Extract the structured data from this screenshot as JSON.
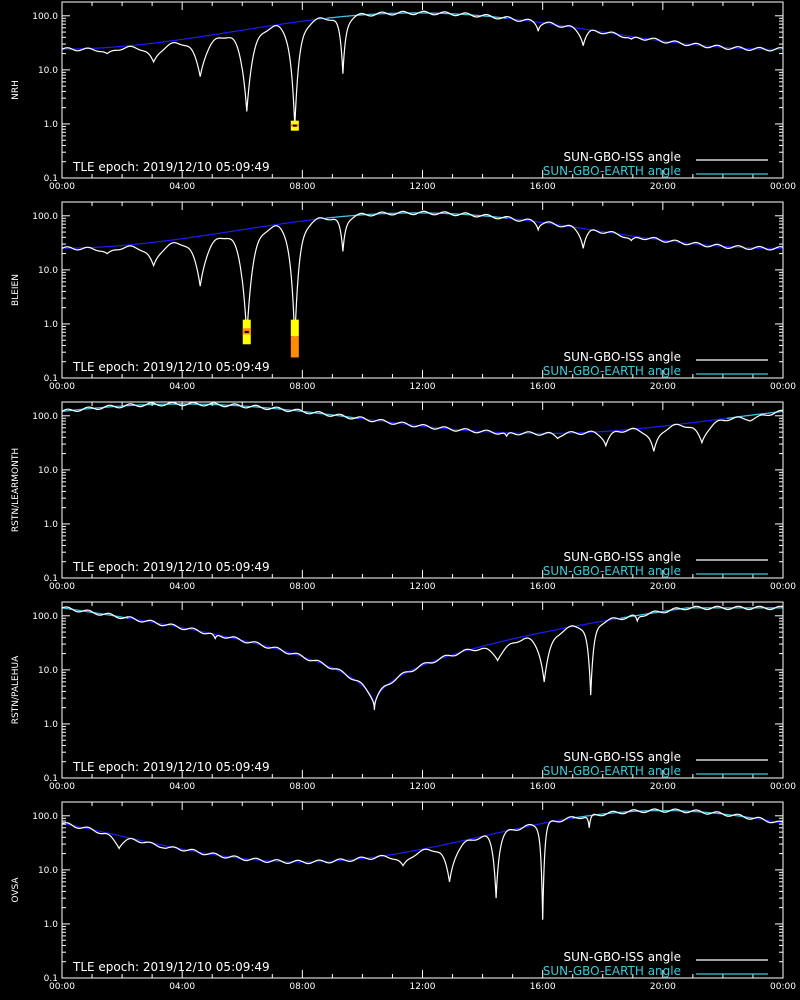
{
  "colors": {
    "background": "#000000",
    "axes": "#ffffff",
    "iss_line": "#ffffff",
    "iss_line_dim": "#8a8a8a",
    "earth_line": "#3fc8d8",
    "earth_line_low": "#1c1cff",
    "flag_yellow": "#ffff00",
    "flag_orange": "#ff8c00"
  },
  "chart_data": [
    {
      "type": "line",
      "ylabel": "NRH",
      "yscale": "log",
      "ylim": [
        0.1,
        180
      ],
      "xlim": [
        0,
        24
      ],
      "x_ticks": [
        "00:00",
        "04:00",
        "08:00",
        "12:00",
        "16:00",
        "20:00",
        "00:00"
      ],
      "y_ticks": [
        "0.1",
        "1.0",
        "10.0",
        "100.0"
      ],
      "annotation": "TLE epoch: 2019/12/10 05:09:49",
      "legend": [
        "SUN-GBO-ISS angle",
        "SUN-GBO-EARTH angle"
      ],
      "legend_position": "bottom-right",
      "earth_curve": {
        "min_hour": 0.0,
        "min_value": 24,
        "max_hour": 11.8,
        "max_value": 113,
        "dip_hour": null
      },
      "iss_dips": [
        {
          "hour": 1.5,
          "value": 20,
          "width": 0.35
        },
        {
          "hour": 3.05,
          "value": 14,
          "width": 0.3
        },
        {
          "hour": 4.6,
          "value": 7.5,
          "width": 0.25
        },
        {
          "hour": 6.15,
          "value": 1.7,
          "width": 0.2
        },
        {
          "hour": 7.75,
          "value": 0.9,
          "width": 0.15
        },
        {
          "hour": 9.35,
          "value": 8.5,
          "width": 0.1
        },
        {
          "hour": 15.85,
          "value": 52,
          "width": 0.06
        },
        {
          "hour": 17.35,
          "value": 28,
          "width": 0.12
        },
        {
          "hour": 18.95,
          "value": 37,
          "width": 0.18
        },
        {
          "hour": 20.5,
          "value": 46,
          "width": 0.25
        },
        {
          "hour": 22.1,
          "value": 48,
          "width": 0.3
        },
        {
          "hour": 23.65,
          "value": 46,
          "width": 0.35
        }
      ],
      "flags": [
        {
          "hour": 7.75,
          "value_low": 0.75,
          "value_high": 1.15,
          "color": "yellow",
          "center_dot": true
        }
      ]
    },
    {
      "type": "line",
      "ylabel": "BLEIEN",
      "yscale": "log",
      "ylim": [
        0.1,
        180
      ],
      "xlim": [
        0,
        24
      ],
      "x_ticks": [
        "00:00",
        "04:00",
        "08:00",
        "12:00",
        "16:00",
        "20:00",
        "00:00"
      ],
      "y_ticks": [
        "0.1",
        "1.0",
        "10.0",
        "100.0"
      ],
      "annotation": "TLE epoch: 2019/12/10 05:09:49",
      "legend": [
        "SUN-GBO-ISS angle",
        "SUN-GBO-EARTH angle"
      ],
      "legend_position": "bottom-right",
      "earth_curve": {
        "min_hour": 0.0,
        "min_value": 25,
        "max_hour": 11.8,
        "max_value": 113,
        "dip_hour": null
      },
      "iss_dips": [
        {
          "hour": 1.5,
          "value": 20,
          "width": 0.35
        },
        {
          "hour": 3.05,
          "value": 12,
          "width": 0.3
        },
        {
          "hour": 4.6,
          "value": 5,
          "width": 0.25
        },
        {
          "hour": 6.15,
          "value": 0.6,
          "width": 0.2
        },
        {
          "hour": 7.75,
          "value": 0.5,
          "width": 0.15
        },
        {
          "hour": 9.35,
          "value": 22,
          "width": 0.1
        },
        {
          "hour": 15.85,
          "value": 55,
          "width": 0.06
        },
        {
          "hour": 17.35,
          "value": 25,
          "width": 0.12
        },
        {
          "hour": 18.95,
          "value": 35,
          "width": 0.18
        },
        {
          "hour": 20.5,
          "value": 45,
          "width": 0.25
        },
        {
          "hour": 22.1,
          "value": 47,
          "width": 0.3
        },
        {
          "hour": 23.65,
          "value": 45,
          "width": 0.35
        }
      ],
      "flags": [
        {
          "hour": 6.15,
          "value_low": 0.42,
          "value_high": 1.2,
          "color": "yellow",
          "center_dot": true
        },
        {
          "hour": 7.75,
          "value_low": 0.24,
          "value_high": 1.2,
          "color": "yellow-orange",
          "center_dot": false
        }
      ]
    },
    {
      "type": "line",
      "ylabel": "RSTN/LEARMONTH",
      "yscale": "log",
      "ylim": [
        0.1,
        180
      ],
      "xlim": [
        0,
        24
      ],
      "x_ticks": [
        "00:00",
        "04:00",
        "08:00",
        "12:00",
        "16:00",
        "20:00",
        "00:00"
      ],
      "y_ticks": [
        "0.1",
        "1.0",
        "10.0",
        "100.0"
      ],
      "annotation": "TLE epoch: 2019/12/10 05:09:49",
      "legend": [
        "SUN-GBO-ISS angle",
        "SUN-GBO-EARTH angle"
      ],
      "legend_position": "bottom-right",
      "earth_curve": {
        "min_hour": 16.0,
        "min_value": 47,
        "max_hour": 4.0,
        "max_value": 165,
        "dip_hour": null
      },
      "iss_dips": [
        {
          "hour": 12.3,
          "value": 80,
          "width": 0.06
        },
        {
          "hour": 13.8,
          "value": 65,
          "width": 0.06
        },
        {
          "hour": 14.8,
          "value": 42,
          "width": 0.08
        },
        {
          "hour": 16.5,
          "value": 38,
          "width": 0.12
        },
        {
          "hour": 18.1,
          "value": 28,
          "width": 0.15
        },
        {
          "hour": 19.7,
          "value": 22,
          "width": 0.2
        },
        {
          "hour": 21.3,
          "value": 32,
          "width": 0.25
        },
        {
          "hour": 22.9,
          "value": 80,
          "width": 0.3
        }
      ],
      "flags": []
    },
    {
      "type": "line",
      "ylabel": "RSTN/PALEHUA",
      "yscale": "log",
      "ylim": [
        0.1,
        180
      ],
      "xlim": [
        0,
        24
      ],
      "x_ticks": [
        "00:00",
        "04:00",
        "08:00",
        "12:00",
        "16:00",
        "20:00",
        "00:00"
      ],
      "y_ticks": [
        "0.1",
        "1.0",
        "10.0",
        "100.0"
      ],
      "annotation": "TLE epoch: 2019/12/10 05:09:49",
      "legend": [
        "SUN-GBO-ISS angle",
        "SUN-GBO-EARTH angle"
      ],
      "legend_position": "bottom-right",
      "earth_curve": {
        "min_hour": 10.4,
        "min_value": 1.9,
        "max_hour": 0.0,
        "max_value": 140,
        "dip_hour": 10.4
      },
      "iss_dips": [
        {
          "hour": 5.1,
          "value": 38,
          "width": 0.08
        },
        {
          "hour": 6.65,
          "value": 35,
          "width": 0.2
        },
        {
          "hour": 8.25,
          "value": 38,
          "width": 0.45
        },
        {
          "hour": 9.75,
          "value": 45,
          "width": 0.5
        },
        {
          "hour": 11.35,
          "value": 35,
          "width": 0.5
        },
        {
          "hour": 12.9,
          "value": 28,
          "width": 0.5
        },
        {
          "hour": 14.5,
          "value": 15,
          "width": 0.3
        },
        {
          "hour": 16.05,
          "value": 6,
          "width": 0.2
        },
        {
          "hour": 17.6,
          "value": 3.4,
          "width": 0.1
        },
        {
          "hour": 19.15,
          "value": 80,
          "width": 0.06
        }
      ],
      "flags": []
    },
    {
      "type": "line",
      "ylabel": "OVSA",
      "yscale": "log",
      "ylim": [
        0.1,
        180
      ],
      "xlim": [
        0,
        24
      ],
      "x_ticks": [
        "00:00",
        "04:00",
        "08:00",
        "12:00",
        "16:00",
        "20:00",
        "00:00"
      ],
      "y_ticks": [
        "0.1",
        "1.0",
        "10.0",
        "100.0"
      ],
      "annotation": "TLE epoch: 2019/12/10 05:09:49",
      "legend": [
        "SUN-GBO-ISS angle",
        "SUN-GBO-EARTH angle"
      ],
      "legend_position": "bottom-right",
      "earth_curve": {
        "min_hour": 8.0,
        "min_value": 14,
        "max_hour": 20.0,
        "max_value": 125,
        "dip_hour": null
      },
      "iss_dips": [
        {
          "hour": 1.9,
          "value": 25,
          "width": 0.2
        },
        {
          "hour": 3.45,
          "value": 25,
          "width": 0.3
        },
        {
          "hour": 5.05,
          "value": 33,
          "width": 0.4
        },
        {
          "hour": 6.6,
          "value": 35,
          "width": 0.45
        },
        {
          "hour": 8.2,
          "value": 30,
          "width": 0.45
        },
        {
          "hour": 9.75,
          "value": 25,
          "width": 0.4
        },
        {
          "hour": 11.35,
          "value": 12,
          "width": 0.3
        },
        {
          "hour": 12.9,
          "value": 6,
          "width": 0.2
        },
        {
          "hour": 14.45,
          "value": 3,
          "width": 0.1
        },
        {
          "hour": 16.0,
          "value": 1.2,
          "width": 0.06
        },
        {
          "hour": 17.55,
          "value": 60,
          "width": 0.05
        }
      ],
      "flags": []
    }
  ]
}
